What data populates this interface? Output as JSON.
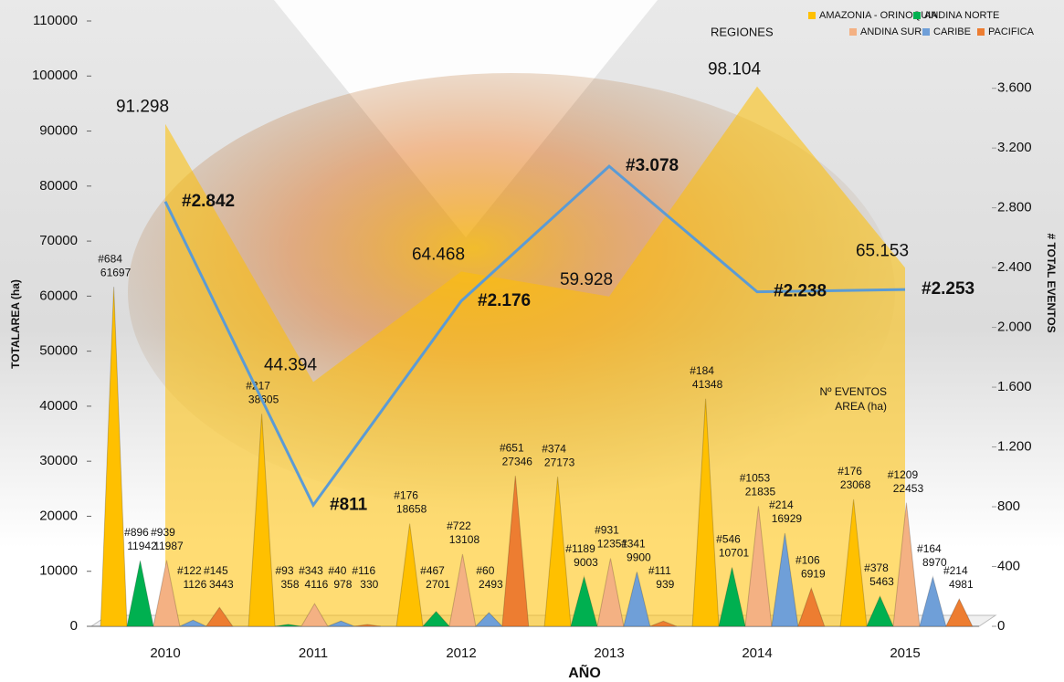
{
  "chart_data": {
    "type": "cone-combo",
    "xlabel": "AÑO",
    "ylabel": "TOTALAREA (ha)",
    "y2label": "# TOTAL EVENTOS",
    "legend_title": "REGIONES",
    "categories": [
      "2010",
      "2011",
      "2012",
      "2013",
      "2014",
      "2015"
    ],
    "ylim": [
      0,
      110000
    ],
    "yticks": [
      0,
      10000,
      20000,
      30000,
      40000,
      50000,
      60000,
      70000,
      80000,
      90000,
      100000,
      110000
    ],
    "y2lim": [
      0,
      4050
    ],
    "y2ticks": [
      0,
      400,
      800,
      {
        "value": 1200,
        "label": "1.200"
      },
      {
        "value": 1600,
        "label": "1.600"
      },
      {
        "value": 2000,
        "label": "2.000"
      },
      {
        "value": 2400,
        "label": "2.400"
      },
      {
        "value": 2800,
        "label": "2.800"
      },
      {
        "value": 3200,
        "label": "3.200"
      },
      {
        "value": 3600,
        "label": "3.600"
      }
    ],
    "series": [
      {
        "name": "AMAZONIA - ORINOQUIA",
        "color": "#ffc000",
        "values": [
          61697,
          38605,
          18658,
          27173,
          41348,
          23068
        ],
        "events": [
          684,
          217,
          176,
          374,
          184,
          176
        ],
        "event_labels": [
          "#684",
          "#217",
          "#176",
          "#374",
          "#184",
          "#176"
        ]
      },
      {
        "name": "ANDINA NORTE",
        "color": "#00b050",
        "values": [
          11942,
          358,
          2701,
          9003,
          10701,
          5463
        ],
        "events": [
          896,
          93,
          467,
          1189,
          546,
          378
        ],
        "event_labels": [
          "#896",
          "#93",
          "#467",
          "#1189",
          "#546",
          "#378"
        ]
      },
      {
        "name": "ANDINA SUR",
        "color": "#f4b183",
        "values": [
          11987,
          4116,
          13108,
          12351,
          21835,
          22453
        ],
        "events": [
          939,
          343,
          722,
          931,
          1053,
          1209
        ],
        "event_labels": [
          "#939",
          "#343",
          "#722",
          "#931",
          "#1053",
          "#1209"
        ]
      },
      {
        "name": "CARIBE",
        "color": "#6f9fd8",
        "values": [
          1126,
          978,
          2493,
          9900,
          16929,
          8970
        ],
        "events": [
          122,
          40,
          60,
          341,
          214,
          164
        ],
        "event_labels": [
          "#122",
          "#40",
          "#60",
          "#341",
          "#214",
          "#164"
        ]
      },
      {
        "name": "PACIFICA",
        "color": "#ed7d31",
        "values": [
          3443,
          330,
          27346,
          939,
          6919,
          4981
        ],
        "events": [
          145,
          116,
          651,
          111,
          106,
          214
        ],
        "event_labels": [
          "#145",
          "#116",
          "#651",
          "#111",
          "#106",
          "#214"
        ]
      }
    ],
    "total_area": {
      "color": "#ffc000",
      "values": [
        91298,
        44394,
        64468,
        59928,
        98104,
        65153
      ],
      "value_labels": [
        "91.298",
        "44.394",
        "64.468",
        "59.928",
        "98.104",
        "65.153"
      ]
    },
    "total_events": {
      "axis": "y2",
      "color": "#5b9bd5",
      "values": [
        2842,
        811,
        2176,
        3078,
        2238,
        2253
      ],
      "value_labels": [
        "#2.842",
        "#811",
        "#2.176",
        "#3.078",
        "#2.238",
        "#2.253"
      ]
    },
    "annotations": [
      "Nº EVENTOS",
      "AREA (ha)"
    ]
  }
}
